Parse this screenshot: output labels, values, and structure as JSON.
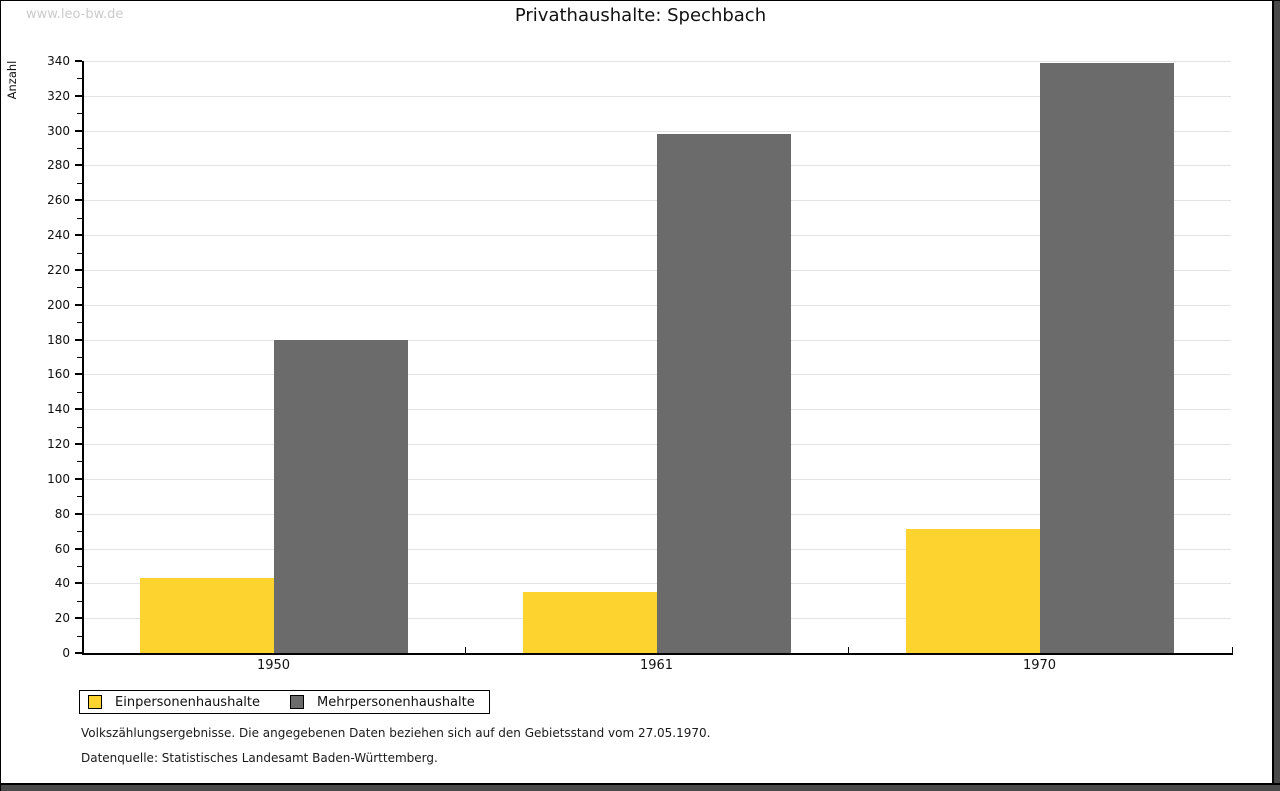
{
  "watermark": "www.leo-bw.de",
  "header": {
    "title": "Privathaushalte: Spechbach"
  },
  "chart_data": {
    "type": "bar",
    "title": "Privathaushalte: Spechbach",
    "xlabel": "",
    "ylabel": "Anzahl",
    "categories": [
      "1950",
      "1961",
      "1970"
    ],
    "series": [
      {
        "name": "Einpersonenhaushalte",
        "color": "#FCD32F",
        "values": [
          43,
          35,
          71
        ]
      },
      {
        "name": "Mehrpersonenhaushalte",
        "color": "#6B6B6B",
        "values": [
          180,
          298,
          339
        ]
      }
    ],
    "ylim": [
      0,
      340
    ],
    "ytick_step": 20,
    "yminor_step": 10,
    "grid": true,
    "gridline_color": "#E3E3E3",
    "legend_position": "bottom-left"
  },
  "footnotes": {
    "line1": "Volkszählungsergebnisse. Die angegebenen Daten beziehen sich auf den Gebietsstand vom 27.05.1970.",
    "line2": "Datenquelle: Statistisches Landesamt Baden-Württemberg."
  }
}
